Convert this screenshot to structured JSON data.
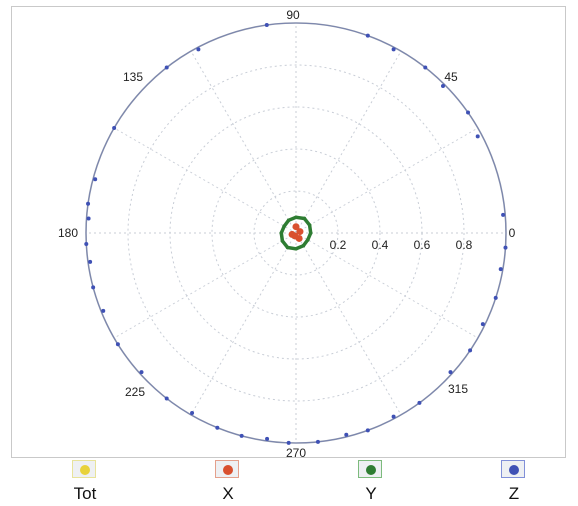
{
  "chart_data": {
    "type": "scatter",
    "subtype": "polar",
    "angle_labels": [
      "0",
      "45",
      "90",
      "135",
      "180",
      "225",
      "270",
      "315"
    ],
    "radial_ticks": [
      "0.2",
      "0.4",
      "0.6",
      "0.8"
    ],
    "rlim": [
      0,
      1
    ],
    "grid": true,
    "legend_position": "bottom",
    "series": [
      {
        "name": "Tot",
        "color": "#e8d23a",
        "points": []
      },
      {
        "name": "X",
        "color": "#d9502f",
        "points": [
          {
            "theta": 90,
            "r": 0.03
          },
          {
            "theta": 200,
            "r": 0.02
          },
          {
            "theta": 300,
            "r": 0.03
          },
          {
            "theta": 20,
            "r": 0.02
          },
          {
            "theta": 250,
            "r": 0.015
          }
        ]
      },
      {
        "name": "Y",
        "color": "#2e7d32",
        "points": [
          {
            "theta": 0,
            "r": 0.07
          },
          {
            "theta": 30,
            "r": 0.075
          },
          {
            "theta": 60,
            "r": 0.08
          },
          {
            "theta": 90,
            "r": 0.075
          },
          {
            "theta": 120,
            "r": 0.07
          },
          {
            "theta": 150,
            "r": 0.065
          },
          {
            "theta": 180,
            "r": 0.07
          },
          {
            "theta": 210,
            "r": 0.075
          },
          {
            "theta": 240,
            "r": 0.08
          },
          {
            "theta": 270,
            "r": 0.075
          },
          {
            "theta": 300,
            "r": 0.07
          },
          {
            "theta": 330,
            "r": 0.065
          }
        ]
      },
      {
        "name": "Z",
        "color": "#3f51b5",
        "points": [
          {
            "theta": 5,
            "r": 0.99
          },
          {
            "theta": 28,
            "r": 0.98
          },
          {
            "theta": 35,
            "r": 1.0
          },
          {
            "theta": 45,
            "r": 0.99
          },
          {
            "theta": 52,
            "r": 1.0
          },
          {
            "theta": 62,
            "r": 0.99
          },
          {
            "theta": 70,
            "r": 1.0
          },
          {
            "theta": 98,
            "r": 1.0
          },
          {
            "theta": 118,
            "r": 0.99
          },
          {
            "theta": 128,
            "r": 1.0
          },
          {
            "theta": 150,
            "r": 1.0
          },
          {
            "theta": 165,
            "r": 0.99
          },
          {
            "theta": 172,
            "r": 1.0
          },
          {
            "theta": 176,
            "r": 0.99
          },
          {
            "theta": 183,
            "r": 1.0
          },
          {
            "theta": 188,
            "r": 0.99
          },
          {
            "theta": 195,
            "r": 1.0
          },
          {
            "theta": 202,
            "r": 0.99
          },
          {
            "theta": 212,
            "r": 1.0
          },
          {
            "theta": 222,
            "r": 0.99
          },
          {
            "theta": 232,
            "r": 1.0
          },
          {
            "theta": 240,
            "r": 0.99
          },
          {
            "theta": 248,
            "r": 1.0
          },
          {
            "theta": 255,
            "r": 1.0
          },
          {
            "theta": 262,
            "r": 0.99
          },
          {
            "theta": 268,
            "r": 1.0
          },
          {
            "theta": 276,
            "r": 1.0
          },
          {
            "theta": 284,
            "r": 0.99
          },
          {
            "theta": 290,
            "r": 1.0
          },
          {
            "theta": 298,
            "r": 0.99
          },
          {
            "theta": 306,
            "r": 1.0
          },
          {
            "theta": 318,
            "r": 0.99
          },
          {
            "theta": 326,
            "r": 1.0
          },
          {
            "theta": 334,
            "r": 0.99
          },
          {
            "theta": 342,
            "r": 1.0
          },
          {
            "theta": 350,
            "r": 0.99
          },
          {
            "theta": 356,
            "r": 1.0
          }
        ]
      }
    ]
  },
  "legend": [
    {
      "label": "Tot",
      "color": "#e8d23a",
      "border": "#e8e39a"
    },
    {
      "label": "X",
      "color": "#d9502f",
      "border": "#e4a08c"
    },
    {
      "label": "Y",
      "color": "#2e7d32",
      "border": "#7dbb7d"
    },
    {
      "label": "Z",
      "color": "#3f51b5",
      "border": "#8190d8"
    }
  ]
}
